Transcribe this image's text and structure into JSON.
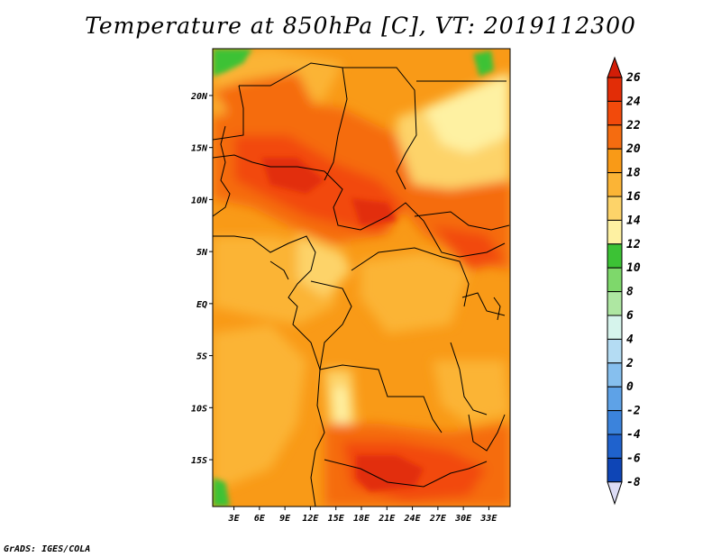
{
  "title": "Temperature at 850hPa [C], VT: 2019112300",
  "credit": "GrADS: IGES/COLA",
  "map": {
    "lat_labels": [
      "20N",
      "15N",
      "10N",
      "5N",
      "EQ",
      "5S",
      "10S",
      "15S"
    ],
    "lon_labels": [
      "3E",
      "6E",
      "9E",
      "12E",
      "15E",
      "18E",
      "21E",
      "24E",
      "27E",
      "30E",
      "33E"
    ],
    "lat_range": [
      -19.5,
      24.5
    ],
    "lon_range": [
      0.5,
      35.5
    ]
  },
  "colorbar": {
    "labels": [
      "26",
      "24",
      "22",
      "20",
      "18",
      "16",
      "14",
      "12",
      "10",
      "8",
      "6",
      "4",
      "2",
      "0",
      "-2",
      "-4",
      "-6",
      "-8"
    ],
    "colors_top_to_bottom": [
      "#e22d07",
      "#f24a0b",
      "#f56c10",
      "#f99a17",
      "#fbb436",
      "#fdd369",
      "#fef1a2",
      "#3cc235",
      "#7ed86b",
      "#aee7a2",
      "#d6f4ec",
      "#b4dcf3",
      "#86bfee",
      "#5ea2e7",
      "#3b83dc",
      "#1f62cd",
      "#0e45b6",
      "#06256e"
    ],
    "over_color": "#d21d07",
    "under_color": "#dcdcf5",
    "unit": "C"
  }
}
